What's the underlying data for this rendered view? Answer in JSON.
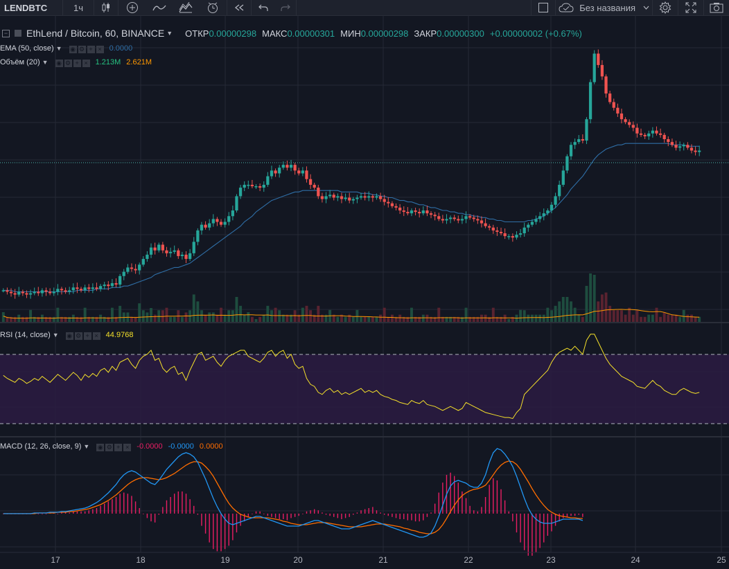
{
  "toolbar": {
    "symbol": "LENDBTC",
    "interval": "1ч",
    "layout_name": "Без названия"
  },
  "legend": {
    "title": "EthLend / Bitcoin, 60, BINANCE",
    "open_label": "ОТКР",
    "open_value": "0.00000298",
    "high_label": "МАКС",
    "high_value": "0.00000301",
    "low_label": "МИН",
    "low_value": "0.00000298",
    "close_label": "ЗАКР",
    "close_value": "0.00000300",
    "change": "+0.00000002 (+0.67%)"
  },
  "indicators": {
    "ema": {
      "name": "EMA (50, close)",
      "value": "0.0000"
    },
    "volume": {
      "name": "Объём (20)",
      "value1": "1.213M",
      "value2": "2.621M"
    },
    "rsi": {
      "name": "RSI (14, close)",
      "value": "44.9768"
    },
    "macd": {
      "name": "MACD (12, 26, close, 9)",
      "hist": "-0.0000",
      "macd": "-0.0000",
      "signal": "0.0000"
    }
  },
  "x_axis": {
    "labels": [
      "17",
      "18",
      "19",
      "20",
      "21",
      "22",
      "23",
      "24",
      "25"
    ]
  },
  "colors": {
    "background": "#131722",
    "up": "#26a69a",
    "down": "#ef5350",
    "ema": "#2f6ea6",
    "rsi": "#f5e12a",
    "macd": "#2196f3",
    "signal": "#ff6d00",
    "hist": "#e91e63",
    "volume_ma": "#ff9800"
  },
  "chart_data": {
    "type": "candlestick",
    "x_unit": "hour",
    "x_start_label": "17",
    "ylim": [
      0,
      100
    ],
    "price_index": [
      30,
      29,
      28,
      27,
      29,
      28,
      27,
      28,
      29,
      28,
      30,
      29,
      28,
      29,
      31,
      30,
      29,
      30,
      32,
      31,
      30,
      32,
      31,
      32,
      31,
      33,
      34,
      33,
      35,
      34,
      40,
      43,
      46,
      45,
      44,
      48,
      52,
      55,
      60,
      58,
      62,
      58,
      56,
      57,
      58,
      54,
      55,
      52,
      56,
      64,
      72,
      76,
      74,
      77,
      80,
      78,
      76,
      78,
      82,
      86,
      96,
      102,
      104,
      104,
      103,
      103,
      102,
      104,
      110,
      114,
      112,
      116,
      118,
      116,
      118,
      114,
      112,
      114,
      108,
      104,
      102,
      96,
      94,
      96,
      97,
      95,
      96,
      94,
      95,
      93,
      94,
      95,
      96,
      95,
      96,
      95,
      96,
      94,
      92,
      91,
      89,
      88,
      86,
      85,
      84,
      86,
      85,
      84,
      86,
      84,
      83,
      82,
      80,
      79,
      80,
      81,
      80,
      79,
      80,
      82,
      81,
      80,
      79,
      77,
      75,
      74,
      72,
      71,
      70,
      68,
      68,
      67,
      69,
      70,
      74,
      76,
      78,
      80,
      82,
      84,
      86,
      90,
      96,
      104,
      114,
      124,
      132,
      134,
      136,
      135,
      150,
      176,
      196,
      188,
      180,
      168,
      162,
      158,
      154,
      150,
      148,
      146,
      144,
      140,
      139,
      138,
      140,
      142,
      140,
      139,
      136,
      134,
      132,
      130,
      131,
      132,
      130,
      128,
      127,
      128
    ],
    "ema_line": [
      30,
      30,
      30,
      29,
      29,
      29,
      29,
      29,
      29,
      29,
      29,
      29,
      29,
      29,
      29,
      29,
      29,
      29,
      29,
      30,
      30,
      30,
      30,
      30,
      31,
      31,
      31,
      31,
      32,
      32,
      32,
      33,
      33,
      34,
      35,
      36,
      37,
      38,
      39,
      41,
      42,
      43,
      44,
      45,
      46,
      46,
      47,
      48,
      49,
      51,
      53,
      55,
      57,
      59,
      61,
      63,
      65,
      67,
      69,
      71,
      73,
      75,
      78,
      80,
      82,
      85,
      87,
      89,
      91,
      93,
      94,
      95,
      96,
      97,
      98,
      99,
      99,
      100,
      100,
      100,
      100,
      100,
      100,
      100,
      100,
      100,
      100,
      99,
      99,
      99,
      99,
      99,
      98,
      98,
      98,
      97,
      97,
      96,
      96,
      95,
      95,
      94,
      93,
      93,
      92,
      92,
      91,
      90,
      90,
      89,
      88,
      88,
      87,
      86,
      86,
      85,
      85,
      84,
      84,
      83,
      83,
      82,
      82,
      81,
      81,
      80,
      80,
      79,
      79,
      78,
      78,
      78,
      78,
      78,
      78,
      79,
      79,
      80,
      81,
      82,
      84,
      86,
      88,
      91,
      94,
      97,
      101,
      104,
      107,
      110,
      114,
      118,
      122,
      125,
      127,
      129,
      130,
      131,
      132,
      132,
      133,
      133,
      133,
      133,
      133,
      133,
      133,
      133,
      133,
      133,
      133,
      133,
      132,
      132,
      132,
      132,
      131,
      131,
      131,
      131
    ],
    "rsi_values": [
      55,
      52,
      50,
      48,
      52,
      50,
      47,
      49,
      52,
      50,
      54,
      51,
      48,
      52,
      56,
      53,
      50,
      54,
      58,
      55,
      50,
      56,
      53,
      57,
      54,
      60,
      62,
      58,
      64,
      60,
      68,
      70,
      72,
      66,
      62,
      70,
      74,
      76,
      80,
      70,
      72,
      62,
      58,
      62,
      64,
      56,
      58,
      50,
      60,
      68,
      76,
      78,
      70,
      72,
      74,
      68,
      64,
      70,
      74,
      76,
      78,
      80,
      80,
      74,
      72,
      70,
      68,
      72,
      78,
      80,
      74,
      78,
      80,
      72,
      76,
      66,
      62,
      64,
      52,
      46,
      44,
      38,
      36,
      40,
      42,
      38,
      40,
      36,
      38,
      36,
      38,
      40,
      42,
      38,
      40,
      38,
      40,
      36,
      34,
      33,
      31,
      30,
      28,
      27,
      26,
      30,
      28,
      27,
      30,
      26,
      25,
      24,
      22,
      20,
      22,
      24,
      22,
      20,
      22,
      28,
      26,
      24,
      22,
      20,
      18,
      17,
      16,
      15,
      14,
      13,
      13,
      12,
      18,
      22,
      36,
      40,
      44,
      48,
      52,
      56,
      60,
      68,
      74,
      78,
      80,
      82,
      80,
      84,
      80,
      76,
      90,
      96,
      96,
      88,
      80,
      72,
      66,
      62,
      58,
      54,
      52,
      50,
      48,
      44,
      43,
      42,
      46,
      50,
      46,
      44,
      40,
      38,
      36,
      36,
      40,
      42,
      40,
      38,
      37,
      38
    ],
    "macd_values": [
      0,
      0,
      0,
      0,
      0,
      0,
      0,
      0,
      1,
      1,
      1,
      1,
      2,
      2,
      2,
      3,
      3,
      4,
      5,
      6,
      7,
      8,
      10,
      13,
      16,
      20,
      25,
      30,
      36,
      42,
      50,
      56,
      60,
      62,
      60,
      56,
      52,
      48,
      44,
      42,
      48,
      56,
      64,
      70,
      76,
      82,
      86,
      88,
      86,
      82,
      74,
      62,
      50,
      36,
      22,
      10,
      0,
      -8,
      -14,
      -16,
      -14,
      -12,
      -10,
      -8,
      -6,
      -4,
      -4,
      -6,
      -8,
      -10,
      -12,
      -14,
      -16,
      -18,
      -18,
      -18,
      -18,
      -16,
      -14,
      -12,
      -10,
      -10,
      -12,
      -14,
      -16,
      -18,
      -20,
      -22,
      -22,
      -22,
      -20,
      -18,
      -16,
      -14,
      -12,
      -10,
      -12,
      -14,
      -16,
      -18,
      -20,
      -22,
      -24,
      -26,
      -28,
      -30,
      -32,
      -34,
      -34,
      -32,
      -28,
      -18,
      -4,
      12,
      28,
      40,
      46,
      48,
      46,
      44,
      40,
      38,
      38,
      44,
      56,
      74,
      88,
      94,
      92,
      86,
      78,
      68,
      54,
      38,
      22,
      8,
      -2,
      -8,
      -12,
      -14,
      -14,
      -14,
      -12,
      -10,
      -8,
      -8,
      -8,
      -8,
      -8,
      -10
    ],
    "signal_values": [
      0,
      0,
      0,
      0,
      0,
      0,
      0,
      0,
      0,
      1,
      1,
      1,
      1,
      1,
      2,
      2,
      2,
      3,
      3,
      4,
      5,
      6,
      7,
      9,
      11,
      13,
      16,
      19,
      23,
      27,
      32,
      37,
      42,
      46,
      49,
      51,
      52,
      52,
      51,
      50,
      49,
      50,
      52,
      55,
      58,
      62,
      66,
      70,
      73,
      75,
      75,
      73,
      68,
      62,
      54,
      44,
      34,
      24,
      15,
      8,
      3,
      -1,
      -3,
      -5,
      -6,
      -6,
      -6,
      -6,
      -6,
      -7,
      -8,
      -9,
      -11,
      -12,
      -14,
      -15,
      -16,
      -16,
      -16,
      -15,
      -14,
      -13,
      -13,
      -13,
      -14,
      -15,
      -16,
      -17,
      -18,
      -19,
      -19,
      -19,
      -19,
      -18,
      -17,
      -16,
      -15,
      -15,
      -15,
      -16,
      -17,
      -18,
      -19,
      -21,
      -22,
      -24,
      -25,
      -27,
      -28,
      -29,
      -29,
      -27,
      -23,
      -16,
      -7,
      3,
      12,
      20,
      26,
      30,
      33,
      35,
      36,
      38,
      41,
      48,
      56,
      64,
      70,
      74,
      76,
      75,
      71,
      64,
      55,
      46,
      36,
      27,
      19,
      12,
      6,
      2,
      -1,
      -3,
      -4,
      -5,
      -6,
      -6,
      -7,
      -7
    ]
  }
}
